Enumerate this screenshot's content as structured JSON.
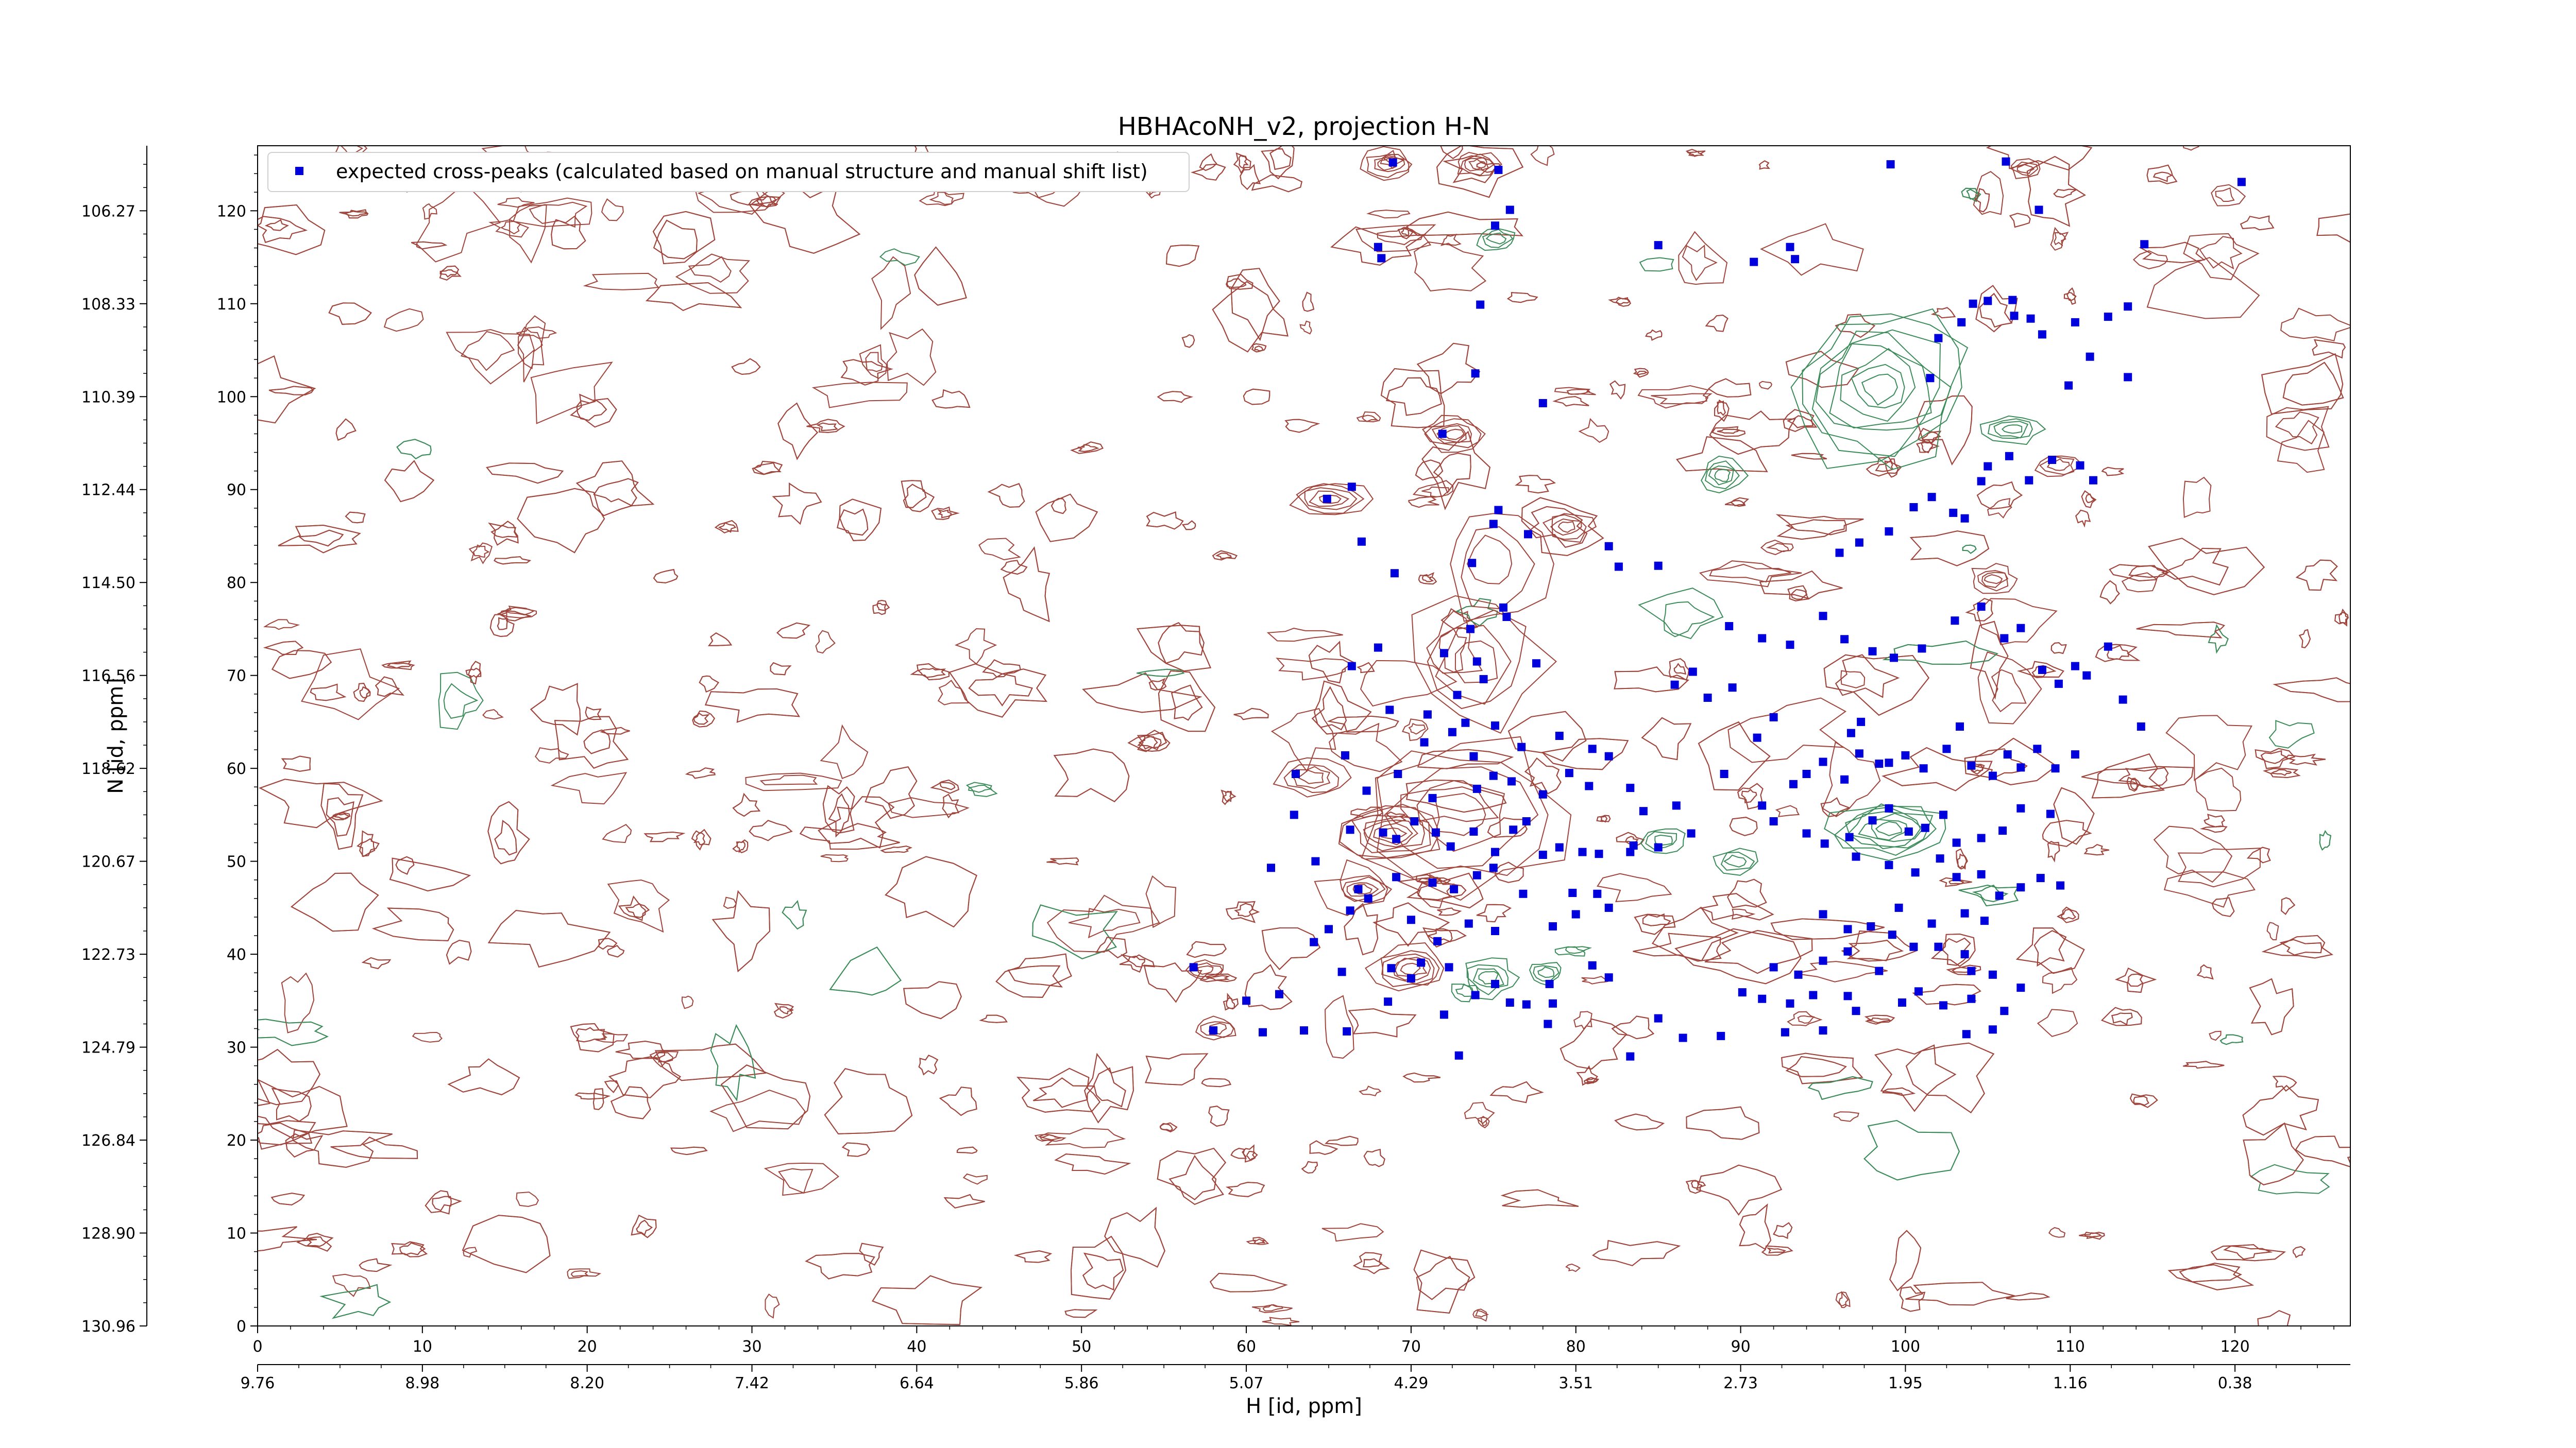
{
  "chart_data": {
    "type": "scatter",
    "title": "HBHAcoNH_v2, projection H-N",
    "xlabel": "H [id, ppm]",
    "ylabel": "N [id, ppm]",
    "xlim": [
      0,
      127
    ],
    "ylim": [
      0,
      127
    ],
    "x_ticks": [
      0,
      10,
      20,
      30,
      40,
      50,
      60,
      70,
      80,
      90,
      100,
      110,
      120
    ],
    "y_ticks": [
      0,
      10,
      20,
      30,
      40,
      50,
      60,
      70,
      80,
      90,
      100,
      110,
      120
    ],
    "h_ppm_ticks": [
      "9.76",
      "8.98",
      "8.20",
      "7.42",
      "6.64",
      "5.86",
      "5.07",
      "4.29",
      "3.51",
      "2.73",
      "1.95",
      "1.16",
      "0.38"
    ],
    "n_ppm_ticks": [
      "130.96",
      "128.90",
      "126.84",
      "124.79",
      "122.73",
      "120.67",
      "118.62",
      "116.56",
      "114.50",
      "112.44",
      "110.39",
      "108.33",
      "106.27"
    ],
    "legend": {
      "placement": "top-left",
      "entries": [
        "expected cross-peaks (calculated based on manual structure and manual shift list)"
      ]
    },
    "colors": {
      "points": "#0000dd",
      "positive_contours": "#a0453c",
      "negative_contours": "#3c8c5a"
    },
    "series": [
      {
        "name": "expected cross-peaks (calculated based on manual structure and manual shift list)",
        "points": [
          [
            68.9,
            125.2
          ],
          [
            68.2,
            114.9
          ],
          [
            75.1,
            118.4
          ],
          [
            76.0,
            120.1
          ],
          [
            75.3,
            124.4
          ],
          [
            74.2,
            109.9
          ],
          [
            68.0,
            116.1
          ],
          [
            71.9,
            96.0
          ],
          [
            73.9,
            102.5
          ],
          [
            78.0,
            99.3
          ],
          [
            75.3,
            87.8
          ],
          [
            75.0,
            86.3
          ],
          [
            77.1,
            85.2
          ],
          [
            64.9,
            89.0
          ],
          [
            66.4,
            90.3
          ],
          [
            67.0,
            84.4
          ],
          [
            69.0,
            81.0
          ],
          [
            73.7,
            82.1
          ],
          [
            75.6,
            77.3
          ],
          [
            82.0,
            83.9
          ],
          [
            82.6,
            81.7
          ],
          [
            85.0,
            81.8
          ],
          [
            72.0,
            72.4
          ],
          [
            73.6,
            75.0
          ],
          [
            74.0,
            71.5
          ],
          [
            75.8,
            76.3
          ],
          [
            74.4,
            69.6
          ],
          [
            77.6,
            71.3
          ],
          [
            66.4,
            71.0
          ],
          [
            68.0,
            73.0
          ],
          [
            68.7,
            66.3
          ],
          [
            71.0,
            65.8
          ],
          [
            72.8,
            67.9
          ],
          [
            73.3,
            64.9
          ],
          [
            75.1,
            64.6
          ],
          [
            70.8,
            62.8
          ],
          [
            72.5,
            63.9
          ],
          [
            73.8,
            61.3
          ],
          [
            76.7,
            62.3
          ],
          [
            79.0,
            63.5
          ],
          [
            81.0,
            62.1
          ],
          [
            82.0,
            61.3
          ],
          [
            63.0,
            59.4
          ],
          [
            66.0,
            61.4
          ],
          [
            67.3,
            57.6
          ],
          [
            69.2,
            59.4
          ],
          [
            71.3,
            56.8
          ],
          [
            74.0,
            57.8
          ],
          [
            75.0,
            59.2
          ],
          [
            76.1,
            58.6
          ],
          [
            78.0,
            57.2
          ],
          [
            79.6,
            59.5
          ],
          [
            80.8,
            58.1
          ],
          [
            83.3,
            57.9
          ],
          [
            84.1,
            55.4
          ],
          [
            86.1,
            56.0
          ],
          [
            62.9,
            55.0
          ],
          [
            66.3,
            53.4
          ],
          [
            68.3,
            53.1
          ],
          [
            69.1,
            52.4
          ],
          [
            70.2,
            54.3
          ],
          [
            71.5,
            53.1
          ],
          [
            72.4,
            51.6
          ],
          [
            73.8,
            53.2
          ],
          [
            75.1,
            51.0
          ],
          [
            76.2,
            53.4
          ],
          [
            77.0,
            54.3
          ],
          [
            78.0,
            50.7
          ],
          [
            79.0,
            51.5
          ],
          [
            80.4,
            51.0
          ],
          [
            81.4,
            50.8
          ],
          [
            83.3,
            51.0
          ],
          [
            85.0,
            51.5
          ],
          [
            87.0,
            53.0
          ],
          [
            61.5,
            49.3
          ],
          [
            64.2,
            50.0
          ],
          [
            66.8,
            47.0
          ],
          [
            67.4,
            46.0
          ],
          [
            69.1,
            48.3
          ],
          [
            71.3,
            47.7
          ],
          [
            72.6,
            47.0
          ],
          [
            74.0,
            48.5
          ],
          [
            75.0,
            49.3
          ],
          [
            76.8,
            46.5
          ],
          [
            79.8,
            46.6
          ],
          [
            81.3,
            46.5
          ],
          [
            82.0,
            45.0
          ],
          [
            83.5,
            51.7
          ],
          [
            66.3,
            44.7
          ],
          [
            70.0,
            43.7
          ],
          [
            71.6,
            41.4
          ],
          [
            73.5,
            43.3
          ],
          [
            75.1,
            42.5
          ],
          [
            78.6,
            43.0
          ],
          [
            80.0,
            44.3
          ],
          [
            65.0,
            42.7
          ],
          [
            64.1,
            41.3
          ],
          [
            56.8,
            38.6
          ],
          [
            60.0,
            35.0
          ],
          [
            62.0,
            35.7
          ],
          [
            65.8,
            38.1
          ],
          [
            68.8,
            38.5
          ],
          [
            70.0,
            37.4
          ],
          [
            70.6,
            39.1
          ],
          [
            72.3,
            38.6
          ],
          [
            73.9,
            35.6
          ],
          [
            75.1,
            36.8
          ],
          [
            76.0,
            34.8
          ],
          [
            78.6,
            34.7
          ],
          [
            78.4,
            36.8
          ],
          [
            81.0,
            38.8
          ],
          [
            82.0,
            37.5
          ],
          [
            58.0,
            31.8
          ],
          [
            61.0,
            31.6
          ],
          [
            63.5,
            31.8
          ],
          [
            66.1,
            31.7
          ],
          [
            68.6,
            34.9
          ],
          [
            72.0,
            33.5
          ],
          [
            77.0,
            34.6
          ],
          [
            78.3,
            32.5
          ],
          [
            72.9,
            29.1
          ],
          [
            83.3,
            29.0
          ],
          [
            85.0,
            33.1
          ],
          [
            86.5,
            31.0
          ],
          [
            88.8,
            31.2
          ],
          [
            86.0,
            69.0
          ],
          [
            87.1,
            70.4
          ],
          [
            88.0,
            67.6
          ],
          [
            89.5,
            68.7
          ],
          [
            91.0,
            63.3
          ],
          [
            92.0,
            65.5
          ],
          [
            89.0,
            59.4
          ],
          [
            91.3,
            56.0
          ],
          [
            93.2,
            58.3
          ],
          [
            94.0,
            59.4
          ],
          [
            95.0,
            60.7
          ],
          [
            96.3,
            58.8
          ],
          [
            97.2,
            61.6
          ],
          [
            98.4,
            60.5
          ],
          [
            96.7,
            63.8
          ],
          [
            97.3,
            65.0
          ],
          [
            99.0,
            60.6
          ],
          [
            100.0,
            61.4
          ],
          [
            101.1,
            60.0
          ],
          [
            102.5,
            62.1
          ],
          [
            103.3,
            64.5
          ],
          [
            104.0,
            60.3
          ],
          [
            105.3,
            59.2
          ],
          [
            106.2,
            61.5
          ],
          [
            107.0,
            60.1
          ],
          [
            108.0,
            62.1
          ],
          [
            109.1,
            60.0
          ],
          [
            110.3,
            61.5
          ],
          [
            92.0,
            54.3
          ],
          [
            94.0,
            53.0
          ],
          [
            95.1,
            51.9
          ],
          [
            96.6,
            52.6
          ],
          [
            98.0,
            54.4
          ],
          [
            99.0,
            55.7
          ],
          [
            100.2,
            53.2
          ],
          [
            101.2,
            53.6
          ],
          [
            102.3,
            55.0
          ],
          [
            103.1,
            52.0
          ],
          [
            104.6,
            52.5
          ],
          [
            105.9,
            53.3
          ],
          [
            107.0,
            55.7
          ],
          [
            108.8,
            55.1
          ],
          [
            97.0,
            50.5
          ],
          [
            99.0,
            49.6
          ],
          [
            100.6,
            48.8
          ],
          [
            102.1,
            50.3
          ],
          [
            103.1,
            48.3
          ],
          [
            104.6,
            48.6
          ],
          [
            105.7,
            46.3
          ],
          [
            107.0,
            47.2
          ],
          [
            108.2,
            48.2
          ],
          [
            109.4,
            47.4
          ],
          [
            99.6,
            45.0
          ],
          [
            101.6,
            43.3
          ],
          [
            103.6,
            44.4
          ],
          [
            104.8,
            43.6
          ],
          [
            95.0,
            44.3
          ],
          [
            96.5,
            42.7
          ],
          [
            97.9,
            43.0
          ],
          [
            99.2,
            42.1
          ],
          [
            100.5,
            40.8
          ],
          [
            102.0,
            40.8
          ],
          [
            103.6,
            40.0
          ],
          [
            92.0,
            38.6
          ],
          [
            93.5,
            37.8
          ],
          [
            95.0,
            39.3
          ],
          [
            96.5,
            40.3
          ],
          [
            98.4,
            38.2
          ],
          [
            104.0,
            38.2
          ],
          [
            105.3,
            37.8
          ],
          [
            107.0,
            36.4
          ],
          [
            90.1,
            35.9
          ],
          [
            91.3,
            35.2
          ],
          [
            93.0,
            34.7
          ],
          [
            94.4,
            35.6
          ],
          [
            96.5,
            35.5
          ],
          [
            99.8,
            34.8
          ],
          [
            100.8,
            36.0
          ],
          [
            102.3,
            34.5
          ],
          [
            104.0,
            35.2
          ],
          [
            106.0,
            33.9
          ],
          [
            92.7,
            31.6
          ],
          [
            95.0,
            31.8
          ],
          [
            97.0,
            33.9
          ],
          [
            103.7,
            31.4
          ],
          [
            105.3,
            31.9
          ],
          [
            89.3,
            75.3
          ],
          [
            91.3,
            74.0
          ],
          [
            93.0,
            73.3
          ],
          [
            95.0,
            76.4
          ],
          [
            96.3,
            73.9
          ],
          [
            98.0,
            72.6
          ],
          [
            99.3,
            71.9
          ],
          [
            101.0,
            72.9
          ],
          [
            103.0,
            75.9
          ],
          [
            104.6,
            77.4
          ],
          [
            106.0,
            74.0
          ],
          [
            107.0,
            75.1
          ],
          [
            108.3,
            70.6
          ],
          [
            109.3,
            69.1
          ],
          [
            110.3,
            71.0
          ],
          [
            111.0,
            70.0
          ],
          [
            112.3,
            73.1
          ],
          [
            113.2,
            67.4
          ],
          [
            114.3,
            64.5
          ],
          [
            96.0,
            83.2
          ],
          [
            97.2,
            84.3
          ],
          [
            99.0,
            85.5
          ],
          [
            100.5,
            88.1
          ],
          [
            101.6,
            89.2
          ],
          [
            102.9,
            87.5
          ],
          [
            103.6,
            86.9
          ],
          [
            104.6,
            90.9
          ],
          [
            105.0,
            92.5
          ],
          [
            106.3,
            93.6
          ],
          [
            107.5,
            91.0
          ],
          [
            108.9,
            93.2
          ],
          [
            110.6,
            92.6
          ],
          [
            111.4,
            91.0
          ],
          [
            101.5,
            102.0
          ],
          [
            102.0,
            106.3
          ],
          [
            103.4,
            108.0
          ],
          [
            104.1,
            110.0
          ],
          [
            105.0,
            110.3
          ],
          [
            106.5,
            110.4
          ],
          [
            107.6,
            108.4
          ],
          [
            108.3,
            106.7
          ],
          [
            110.3,
            108.0
          ],
          [
            112.3,
            108.6
          ],
          [
            113.5,
            109.7
          ],
          [
            114.5,
            116.4
          ],
          [
            99.1,
            125.0
          ],
          [
            106.1,
            125.3
          ],
          [
            108.1,
            120.1
          ],
          [
            120.4,
            123.1
          ],
          [
            85.0,
            116.3
          ],
          [
            90.8,
            114.5
          ],
          [
            93.0,
            116.1
          ],
          [
            93.3,
            114.8
          ],
          [
            111.2,
            104.3
          ],
          [
            106.6,
            108.7
          ],
          [
            109.9,
            101.2
          ],
          [
            113.5,
            102.1
          ]
        ]
      }
    ]
  }
}
